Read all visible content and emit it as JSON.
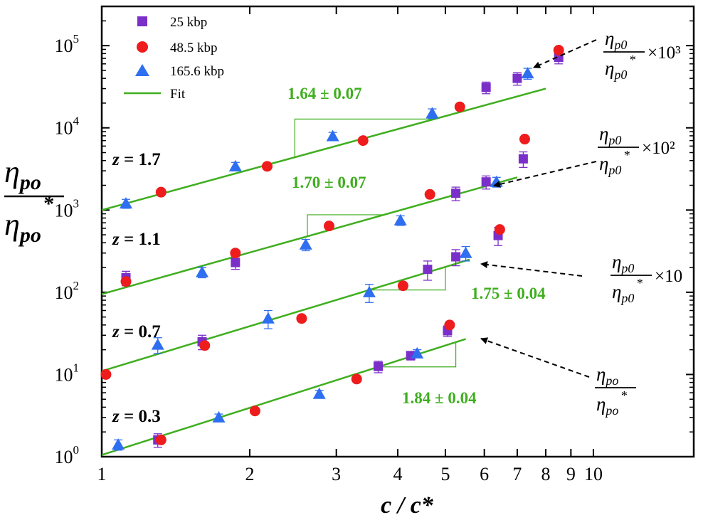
{
  "chart_data": {
    "type": "scatter",
    "x_scale": "log",
    "y_scale": "log",
    "xlim": [
      1,
      16
    ],
    "ylim": [
      1,
      300000
    ],
    "xlabel": "c / c*",
    "ylabel": {
      "main": "η",
      "sub": "po",
      "star": "*"
    },
    "x_ticks": [
      {
        "v": 1,
        "label": "1"
      },
      {
        "v": 2,
        "label": "2"
      },
      {
        "v": 3,
        "label": "3"
      },
      {
        "v": 4,
        "label": "4"
      },
      {
        "v": 5,
        "label": "5"
      },
      {
        "v": 6,
        "label": "6"
      },
      {
        "v": 7,
        "label": "7"
      },
      {
        "v": 8,
        "label": "8"
      },
      {
        "v": 9,
        "label": "9"
      },
      {
        "v": 10,
        "label": "10"
      }
    ],
    "y_ticks": [
      {
        "v": 1,
        "base": "10",
        "exp": "0"
      },
      {
        "v": 10,
        "base": "10",
        "exp": "1"
      },
      {
        "v": 100,
        "base": "10",
        "exp": "2"
      },
      {
        "v": 1000,
        "base": "10",
        "exp": "3"
      },
      {
        "v": 10000,
        "base": "10",
        "exp": "4"
      },
      {
        "v": 100000,
        "base": "10",
        "exp": "5"
      }
    ],
    "legend": {
      "position": "top-left",
      "entries": [
        {
          "label": "25 kbp",
          "marker": "square",
          "color": "#7b2fc9"
        },
        {
          "label": "48.5 kbp",
          "marker": "circle",
          "color": "#ee1c1c"
        },
        {
          "label": "165.6 kbp",
          "marker": "triangle",
          "color": "#2e6ef0"
        },
        {
          "label": "Fit",
          "marker": "line",
          "color": "#3fae1f"
        }
      ]
    },
    "groups": [
      {
        "z_label": {
          "var": "z",
          "eq": " = ",
          "value": "0.3"
        },
        "slope_label": "1.84 ± 0.04",
        "fit": {
          "x0": 1.0,
          "y0": 1.05,
          "x1": 5.5,
          "y1": 27
        },
        "triangle": {
          "xa": 3.65,
          "xb": 5.25
        },
        "annotation": {
          "num_main": "η",
          "num_sub": "po",
          "den_main": "η",
          "den_sub": "po",
          "star": "*",
          "multiplier": ""
        },
        "series": {
          "squares": [
            {
              "x": 1.3,
              "y": 1.6,
              "err": 0.3
            },
            {
              "x": 1.6,
              "y": 25,
              "err": 5
            },
            {
              "x": 3.65,
              "y": 12.5,
              "err": 2
            },
            {
              "x": 4.25,
              "y": 17,
              "err": 2
            },
            {
              "x": 5.05,
              "y": 34,
              "err": 5
            }
          ],
          "circles": [
            {
              "x": 1.32,
              "y": 1.6
            },
            {
              "x": 1.62,
              "y": 22.5
            },
            {
              "x": 2.05,
              "y": 3.6
            },
            {
              "x": 3.3,
              "y": 8.8
            },
            {
              "x": 5.1,
              "y": 40
            }
          ],
          "triangles": [
            {
              "x": 1.08,
              "y": 1.4,
              "err": 0.2
            },
            {
              "x": 1.73,
              "y": 3.0,
              "err": 0.3
            },
            {
              "x": 2.77,
              "y": 5.8,
              "err": 0.6
            },
            {
              "x": 4.38,
              "y": 18,
              "err": 2
            }
          ]
        }
      },
      {
        "z_label": {
          "var": "z",
          "eq": " = ",
          "value": "0.7"
        },
        "slope_label": "1.75 ± 0.04",
        "fit": {
          "x0": 1.0,
          "y0": 11,
          "x1": 5.6,
          "y1": 250
        },
        "triangle": {
          "xa": 3.5,
          "xb": 5.0
        },
        "annotation": {
          "num_main": "η",
          "num_sub": "p0",
          "den_main": "η",
          "den_sub": "p0",
          "star": "*",
          "multiplier": "×10"
        },
        "series": {
          "squares": [
            {
              "x": 1.12,
              "y": 150,
              "err": 30
            },
            {
              "x": 1.87,
              "y": 230,
              "err": 40
            },
            {
              "x": 4.6,
              "y": 190,
              "err": 50
            },
            {
              "x": 5.25,
              "y": 270,
              "err": 60
            }
          ],
          "circles": [
            {
              "x": 1.02,
              "y": 10
            },
            {
              "x": 1.12,
              "y": 135
            },
            {
              "x": 1.87,
              "y": 300
            },
            {
              "x": 2.55,
              "y": 48
            },
            {
              "x": 4.1,
              "y": 120
            }
          ],
          "triangles": [
            {
              "x": 1.3,
              "y": 23,
              "err": 5
            },
            {
              "x": 1.6,
              "y": 175,
              "err": 25
            },
            {
              "x": 2.18,
              "y": 48,
              "err": 12
            },
            {
              "x": 3.5,
              "y": 100,
              "err": 25
            },
            {
              "x": 5.5,
              "y": 300,
              "err": 60
            }
          ]
        }
      },
      {
        "z_label": {
          "var": "z",
          "eq": " = ",
          "value": "1.1"
        },
        "slope_label": "1.70 ± 0.07",
        "fit": {
          "x0": 1.0,
          "y0": 95,
          "x1": 7.0,
          "y1": 2500
        },
        "triangle": {
          "xa": 2.62,
          "xb": 3.75
        },
        "annotation": {
          "num_main": "η",
          "num_sub": "p0",
          "den_main": "η",
          "den_sub": "p0",
          "star": "*",
          "multiplier": "×10²"
        },
        "series": {
          "squares": [
            {
              "x": 5.25,
              "y": 1600,
              "err": 300
            },
            {
              "x": 6.05,
              "y": 2200,
              "err": 400
            },
            {
              "x": 6.4,
              "y": 490,
              "err": 120
            },
            {
              "x": 7.2,
              "y": 4200,
              "err": 900
            }
          ],
          "circles": [
            {
              "x": 1.32,
              "y": 1650
            },
            {
              "x": 2.17,
              "y": 3400
            },
            {
              "x": 2.9,
              "y": 640
            },
            {
              "x": 4.65,
              "y": 1550
            },
            {
              "x": 6.45,
              "y": 580
            },
            {
              "x": 7.25,
              "y": 7300
            }
          ],
          "triangles": [
            {
              "x": 1.12,
              "y": 1200,
              "err": 150
            },
            {
              "x": 2.6,
              "y": 380,
              "err": 60
            },
            {
              "x": 4.05,
              "y": 750,
              "err": 100
            },
            {
              "x": 6.35,
              "y": 2200,
              "err": 300
            }
          ]
        }
      },
      {
        "z_label": {
          "var": "z",
          "eq": " = ",
          "value": "1.7"
        },
        "slope_label": "1.64 ± 0.07",
        "fit": {
          "x0": 1.0,
          "y0": 1000,
          "x1": 8.0,
          "y1": 30000
        },
        "triangle": {
          "xa": 2.47,
          "xb": 4.75
        },
        "annotation": {
          "num_main": "η",
          "num_sub": "p0",
          "den_main": "η",
          "den_sub": "p0",
          "star": "*",
          "multiplier": "×10³"
        },
        "series": {
          "squares": [
            {
              "x": 6.05,
              "y": 31000,
              "err": 5000
            },
            {
              "x": 7.0,
              "y": 40000,
              "err": 7000
            },
            {
              "x": 8.5,
              "y": 72000,
              "err": 12000
            }
          ],
          "circles": [
            {
              "x": 3.4,
              "y": 7000
            },
            {
              "x": 5.35,
              "y": 18000
            },
            {
              "x": 8.5,
              "y": 88000
            }
          ],
          "triangles": [
            {
              "x": 1.87,
              "y": 3400,
              "err": 400
            },
            {
              "x": 2.95,
              "y": 7900,
              "err": 900
            },
            {
              "x": 4.7,
              "y": 15000,
              "err": 2000
            },
            {
              "x": 7.35,
              "y": 46000,
              "err": 7000
            }
          ]
        }
      }
    ]
  }
}
